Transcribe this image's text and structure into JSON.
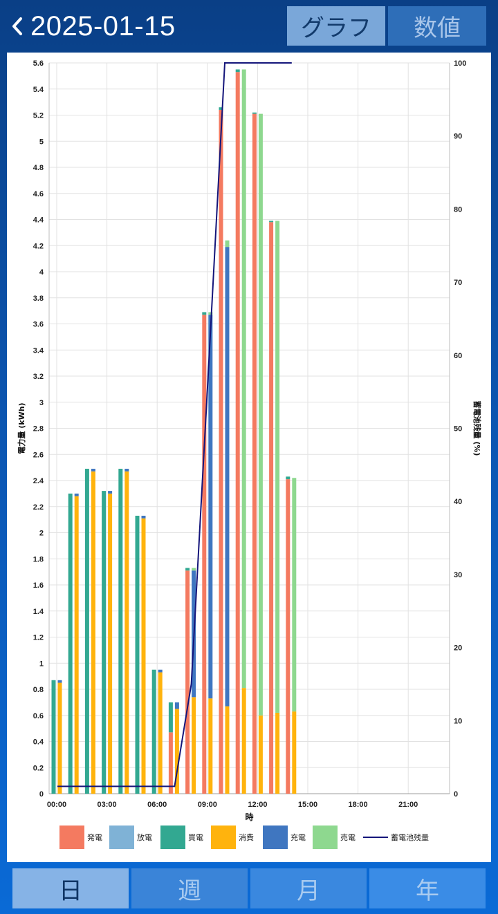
{
  "header": {
    "back_icon": "chevron-left-icon",
    "title": "2025-01-15",
    "view_toggle": {
      "graph_label": "グラフ",
      "values_label": "数値",
      "selected": "graph"
    }
  },
  "period_tabs": {
    "items": [
      "日",
      "週",
      "月",
      "年"
    ],
    "selected": 0
  },
  "chart_data": {
    "type": "bar",
    "title": "",
    "xlabel": "時",
    "ylabel_left": "電力量 (kWh)",
    "ylabel_right": "蓄電池残量 (%)",
    "ylim_left": [
      0,
      5.6
    ],
    "ylim_right": [
      0,
      100
    ],
    "left_ticks": [
      "0",
      "0.2",
      "0.4",
      "0.6",
      "0.8",
      "1",
      "1.2",
      "1.4",
      "1.6",
      "1.8",
      "2",
      "2.2",
      "2.4",
      "2.6",
      "2.8",
      "3",
      "3.2",
      "3.4",
      "3.6",
      "3.8",
      "4",
      "4.2",
      "4.4",
      "4.6",
      "4.8",
      "5",
      "5.2",
      "5.4",
      "5.6"
    ],
    "right_ticks": [
      "0",
      "10",
      "20",
      "30",
      "40",
      "50",
      "60",
      "70",
      "80",
      "90",
      "100"
    ],
    "x_tick_labels": [
      "00:00",
      "03:00",
      "06:00",
      "09:00",
      "12:00",
      "15:00",
      "18:00",
      "21:00"
    ],
    "hours": [
      0,
      1,
      2,
      3,
      4,
      5,
      6,
      7,
      8,
      9,
      10,
      11,
      12,
      13,
      14,
      15,
      16,
      17,
      18,
      19,
      20,
      21,
      22,
      23
    ],
    "grid": true,
    "legend_position": "bottom",
    "supply_stack": {
      "発電": [
        0,
        0,
        0,
        0,
        0,
        0,
        0,
        0.47,
        1.71,
        3.67,
        5.24,
        5.53,
        5.21,
        4.38,
        2.41,
        0,
        0,
        0,
        0,
        0,
        0,
        0,
        0,
        0
      ],
      "放電": [
        0,
        0,
        0,
        0,
        0,
        0,
        0,
        0,
        0,
        0,
        0,
        0,
        0,
        0,
        0,
        0,
        0,
        0,
        0,
        0,
        0,
        0,
        0,
        0
      ],
      "買電": [
        0.87,
        2.3,
        2.49,
        2.32,
        2.49,
        2.13,
        0.95,
        0.23,
        0.02,
        0.02,
        0.02,
        0.02,
        0.01,
        0.01,
        0.02,
        0,
        0,
        0,
        0,
        0,
        0,
        0,
        0,
        0
      ]
    },
    "demand_stack": {
      "消費": [
        0.85,
        2.28,
        2.47,
        2.3,
        2.47,
        2.11,
        0.93,
        0.65,
        0.74,
        0.73,
        0.67,
        0.81,
        0.6,
        0.62,
        0.63,
        0,
        0,
        0,
        0,
        0,
        0,
        0,
        0,
        0
      ],
      "充電": [
        0.02,
        0.02,
        0.02,
        0.02,
        0.02,
        0.02,
        0.02,
        0.05,
        0.97,
        2.94,
        3.52,
        0,
        0,
        0,
        0,
        0,
        0,
        0,
        0,
        0,
        0,
        0,
        0,
        0
      ],
      "売電": [
        0,
        0,
        0,
        0,
        0,
        0,
        0,
        0,
        0.02,
        0.02,
        0.05,
        4.74,
        4.61,
        3.77,
        1.79,
        0,
        0,
        0,
        0,
        0,
        0,
        0,
        0,
        0
      ]
    },
    "battery_percent": {
      "x": [
        0,
        1,
        2,
        3,
        4,
        5,
        6,
        7,
        8,
        9,
        10,
        11,
        12,
        13,
        14
      ],
      "values": [
        1,
        1,
        1,
        1,
        1,
        1,
        1,
        1,
        15,
        57,
        100,
        100,
        100,
        100,
        100
      ]
    },
    "legend": [
      "発電",
      "放電",
      "買電",
      "消費",
      "充電",
      "売電",
      "蓄電池残量"
    ],
    "colors": {
      "発電": "#f47a60",
      "放電": "#7fb2d6",
      "買電": "#32a891",
      "消費": "#ffb30d",
      "充電": "#3f76c0",
      "売電": "#8ed88f",
      "蓄電池残量": "#14157a"
    }
  }
}
